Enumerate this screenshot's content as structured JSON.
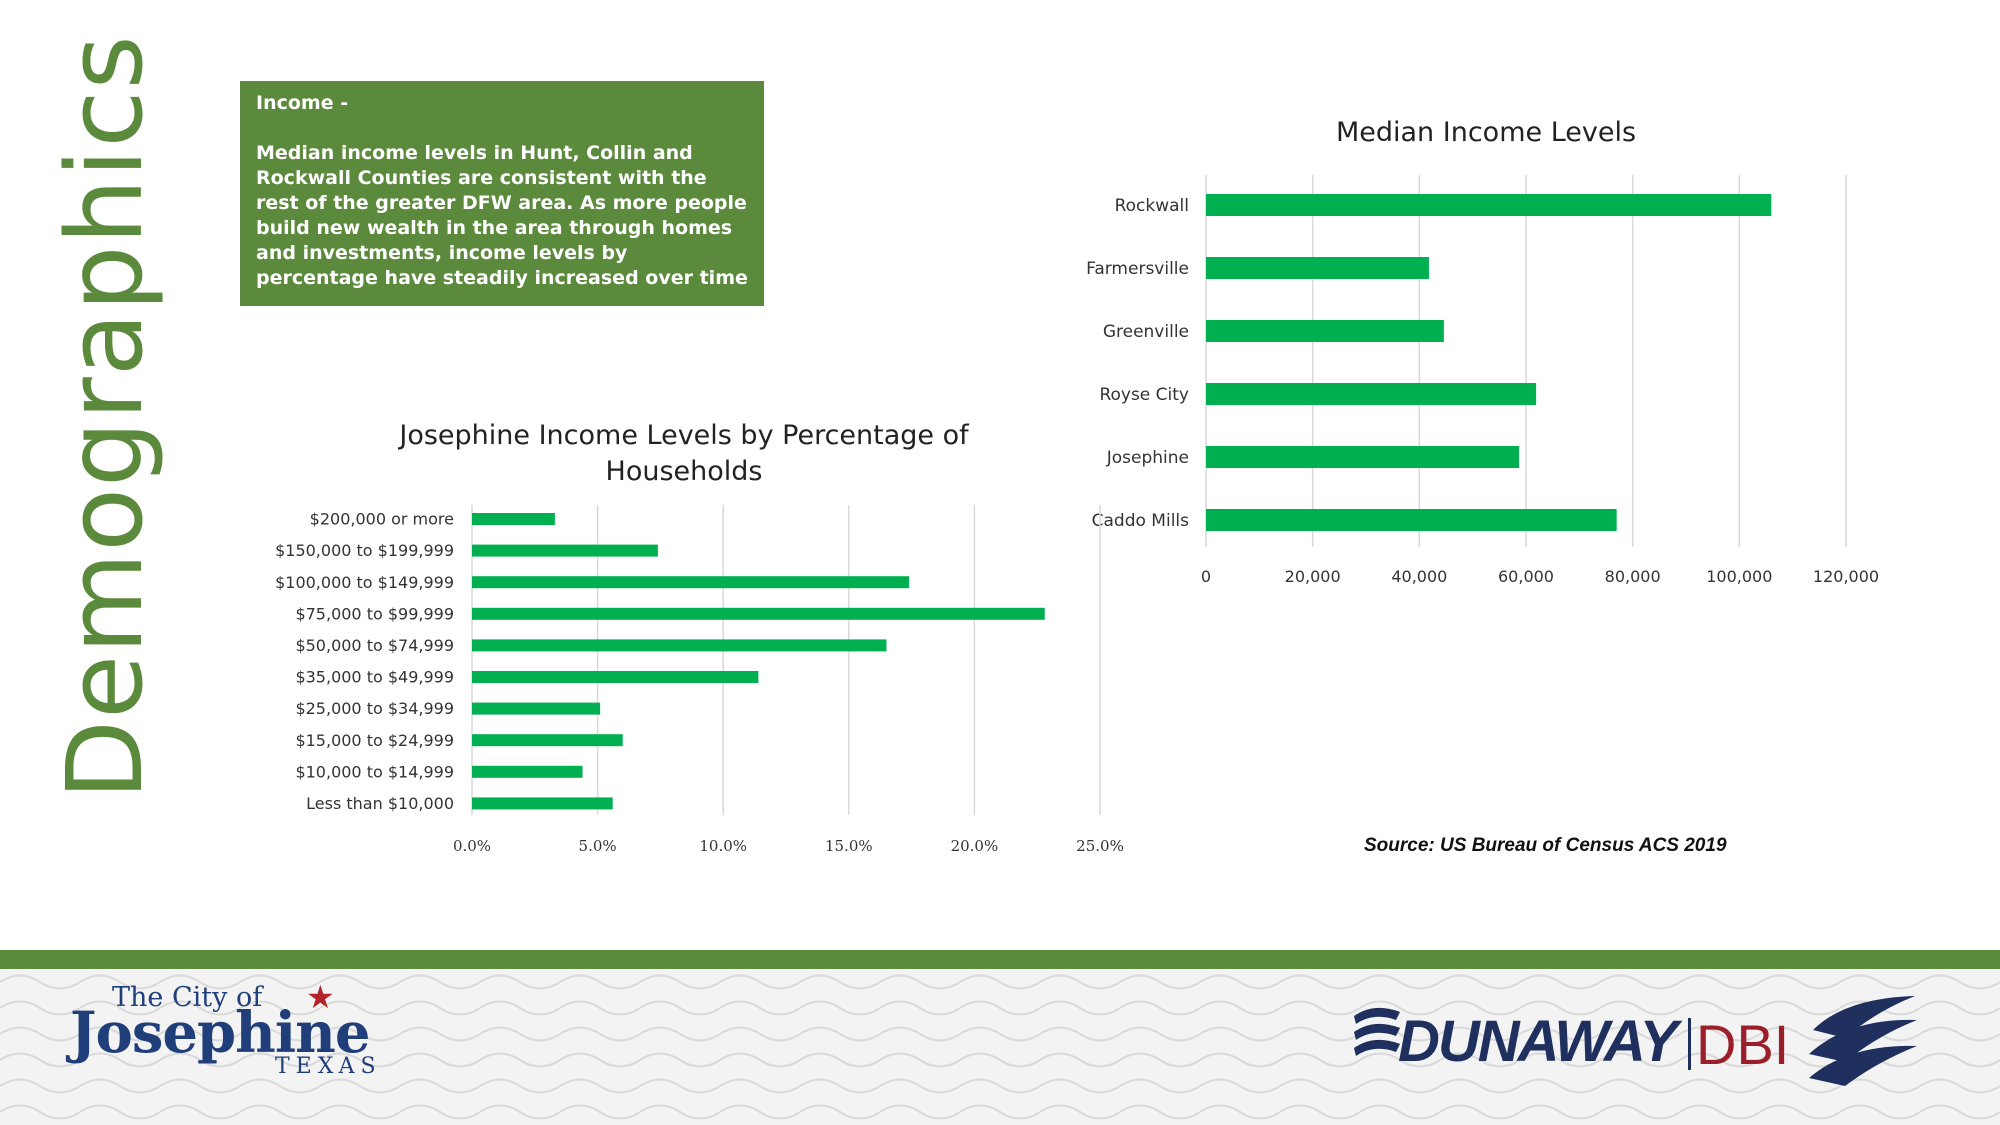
{
  "page_title": "Demographics",
  "info_box": {
    "heading": "Income  -",
    "body": "Median income levels in Hunt, Collin and Rockwall Counties are consistent with the rest of the greater DFW area.  As more people build new wealth in the area through homes and investments, income levels by percentage have steadily increased over time"
  },
  "source": "Source: US Bureau of Census ACS 2019",
  "logos": {
    "city_line1": "The City of",
    "city_line2": "Josephine",
    "city_line3": "TEXAS",
    "dunaway": "DUNAWAY",
    "dbi": "DBI"
  },
  "colors": {
    "bar": "#00b050",
    "green_accent": "#5b8a3c",
    "navy": "#1f3e7a",
    "red": "#9a1f2a"
  },
  "chart_data": [
    {
      "id": "median",
      "type": "bar",
      "orientation": "horizontal",
      "title": "Median Income Levels",
      "categories": [
        "Rockwall",
        "Farmersville",
        "Greenville",
        "Royse City",
        "Josephine",
        "Caddo Mills"
      ],
      "values": [
        106000,
        41800,
        44600,
        61900,
        58700,
        77000
      ],
      "xlim": [
        0,
        120000
      ],
      "ticks": [
        "0",
        "20,000",
        "40,000",
        "60,000",
        "80,000",
        "100,000",
        "120,000"
      ],
      "grid": true
    },
    {
      "id": "pct",
      "type": "bar",
      "orientation": "horizontal",
      "title_lines": [
        "Josephine Income Levels by Percentage of",
        "Households"
      ],
      "categories": [
        "$200,000 or more",
        "$150,000 to $199,999",
        "$100,000 to $149,999",
        "$75,000 to $99,999",
        "$50,000 to $74,999",
        "$35,000 to $49,999",
        "$25,000 to $34,999",
        "$15,000 to $24,999",
        "$10,000 to $14,999",
        "Less than $10,000"
      ],
      "values": [
        3.3,
        7.4,
        17.4,
        22.8,
        16.5,
        11.4,
        5.1,
        6.0,
        4.4,
        5.6
      ],
      "xlim": [
        0,
        25
      ],
      "ticks": [
        "0.0%",
        "5.0%",
        "10.0%",
        "15.0%",
        "20.0%",
        "25.0%"
      ],
      "grid": true
    }
  ]
}
